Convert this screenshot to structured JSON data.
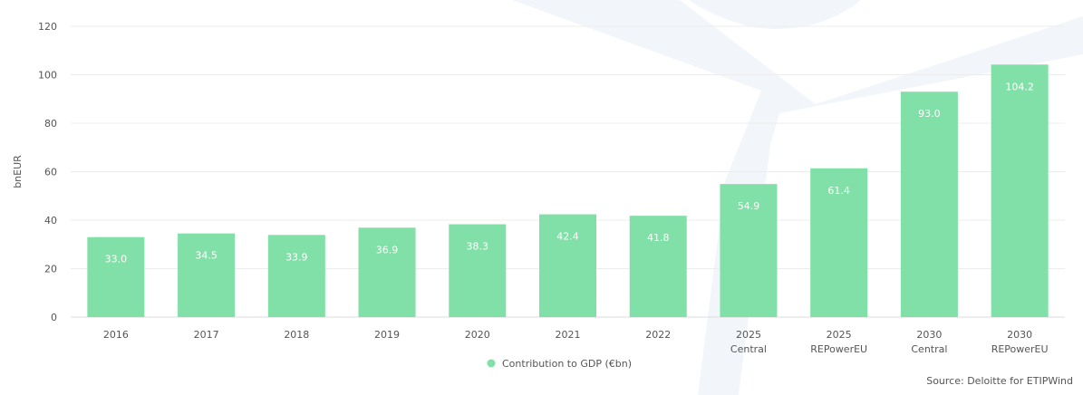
{
  "chart_data": {
    "type": "bar",
    "categories": [
      [
        "2016"
      ],
      [
        "2017"
      ],
      [
        "2018"
      ],
      [
        "2019"
      ],
      [
        "2020"
      ],
      [
        "2021"
      ],
      [
        "2022"
      ],
      [
        "2025",
        "Central"
      ],
      [
        "2025",
        "REPowerEU"
      ],
      [
        "2030",
        "Central"
      ],
      [
        "2030",
        "REPowerEU"
      ]
    ],
    "series": [
      {
        "name": "Contribution to GDP (€bn)",
        "values": [
          33.0,
          34.5,
          33.9,
          36.9,
          38.3,
          42.4,
          41.8,
          54.9,
          61.4,
          93.0,
          104.2
        ],
        "labels": [
          "33.0",
          "34.5",
          "33.9",
          "36.9",
          "38.3",
          "42.4",
          "41.8",
          "54.9",
          "61.4",
          "93.0",
          "104.2"
        ]
      }
    ],
    "ylabel": "bnEUR",
    "ylim": [
      0,
      120
    ],
    "yticks": [
      0,
      20,
      40,
      60,
      80,
      100,
      120
    ],
    "grid": true,
    "legend_position": "bottom-center",
    "source": "Source: Deloitte for ETIPWind"
  },
  "colors": {
    "bar": "#80e0a7",
    "grid": "#ececec",
    "axis": "#dcdcdc",
    "watermark": "#f2f6fa"
  }
}
